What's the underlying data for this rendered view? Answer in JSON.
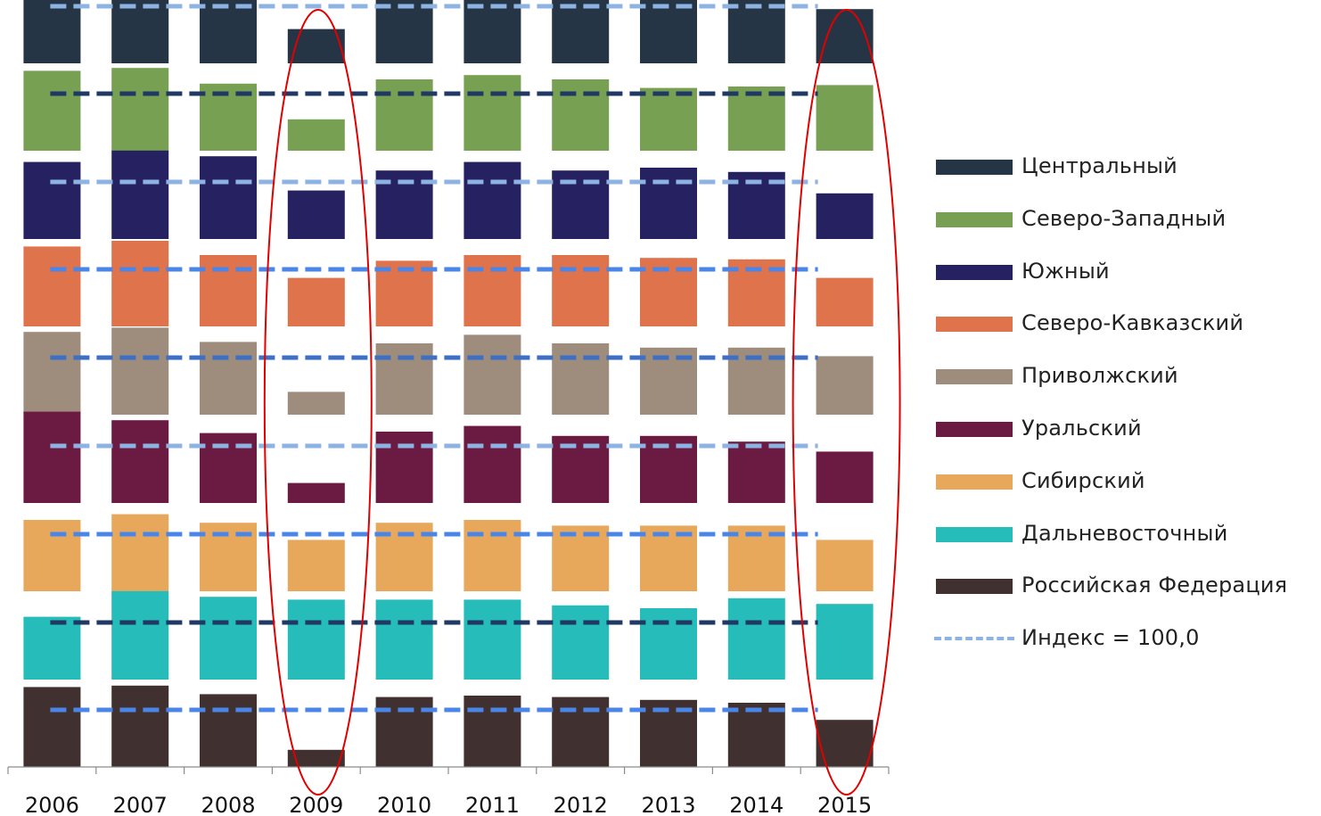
{
  "chart_data": {
    "type": "bar",
    "title": "",
    "xlabel": "",
    "ylabel": "",
    "categories": [
      "2006",
      "2007",
      "2008",
      "2009",
      "2010",
      "2011",
      "2012",
      "2013",
      "2014",
      "2015"
    ],
    "reference_value": 100.0,
    "series": [
      {
        "name": "Центральный",
        "color": "#263545",
        "index_line_color": "#8db3e2",
        "values": [
          108.0,
          111.0,
          106.0,
          92.0,
          105.0,
          109.0,
          105.0,
          103.5,
          103.0,
          99.0
        ]
      },
      {
        "name": "Северо-Западный",
        "color": "#77a052",
        "index_line_color": "#1f3864",
        "values": [
          108.0,
          109.0,
          103.5,
          91.0,
          105.0,
          106.5,
          105.0,
          102.0,
          102.5,
          103.0
        ]
      },
      {
        "name": "Южный",
        "color": "#262262",
        "index_line_color": "#8db3e2",
        "values": [
          107.0,
          111.0,
          109.0,
          97.0,
          104.0,
          107.0,
          104.0,
          105.0,
          103.5,
          96.0
        ]
      },
      {
        "name": "Северо-Кавказский",
        "color": "#de734c",
        "index_line_color": "#4a86e8",
        "values": [
          108.0,
          110.0,
          105.0,
          97.0,
          103.0,
          105.0,
          105.0,
          104.0,
          103.5,
          97.0
        ]
      },
      {
        "name": "Приволжский",
        "color": "#9e8c7d",
        "index_line_color": "#3d6fc4",
        "values": [
          109.0,
          110.5,
          105.5,
          88.0,
          105.0,
          108.0,
          105.0,
          103.5,
          103.5,
          100.5
        ]
      },
      {
        "name": "Уральский",
        "color": "#6b1a42",
        "index_line_color": "#8db3e2",
        "values": [
          112.0,
          109.0,
          104.5,
          87.0,
          105.0,
          107.0,
          103.5,
          103.5,
          101.5,
          98.0
        ]
      },
      {
        "name": "Сибирский",
        "color": "#e8a85c",
        "index_line_color": "#4a86e8",
        "values": [
          105.0,
          107.0,
          104.0,
          98.0,
          104.0,
          105.0,
          103.0,
          103.0,
          103.0,
          98.0
        ]
      },
      {
        "name": "Дальневосточный",
        "color": "#26bcb9",
        "index_line_color": "#1f3864",
        "values": [
          102.0,
          111.0,
          109.0,
          108.0,
          108.0,
          108.0,
          106.0,
          105.0,
          108.5,
          106.5
        ]
      },
      {
        "name": "Российская Федерация",
        "color": "#40302f",
        "index_line_color": "#4a86e8",
        "values": [
          108.0,
          108.5,
          105.5,
          86.0,
          104.5,
          105.0,
          104.5,
          103.5,
          102.5,
          96.5
        ]
      }
    ],
    "index_line": {
      "name": "Индекс = 100,0",
      "color": "#8db3e2",
      "value": 100.0
    },
    "highlighted_categories": [
      "2009",
      "2015"
    ],
    "highlight_color": "#e00000",
    "legend_position": "right",
    "grid": false
  }
}
